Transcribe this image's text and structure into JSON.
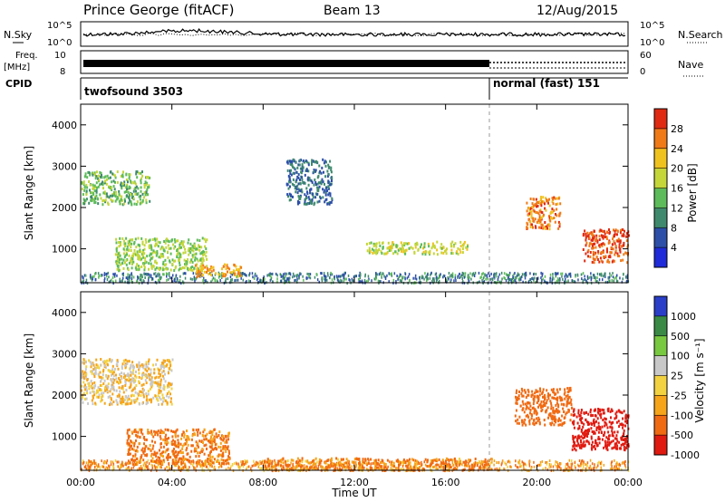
{
  "header": {
    "title": "Prince George (fitACF)",
    "beam": "Beam 13",
    "date": "12/Aug/2015"
  },
  "noise_panel": {
    "left_label": "N.Sky",
    "right_label": "N.Search",
    "left_ticks": [
      "10^5",
      "10^0"
    ],
    "right_ticks": [
      "10^5",
      "10^0"
    ]
  },
  "freq_panel": {
    "left_label_1": "Freq.",
    "left_label_2": "[MHz]",
    "left_ticks": [
      "10",
      "8"
    ],
    "right_label": "Nave",
    "right_ticks": [
      "60",
      "0"
    ]
  },
  "cpid_panel": {
    "label": "CPID",
    "segments": [
      {
        "name": "twofsound 3503",
        "start_hour": 0,
        "end_hour": 18
      },
      {
        "name": "normal (fast) 151",
        "start_hour": 18,
        "end_hour": 24
      }
    ]
  },
  "colors": {
    "power_scale": [
      "#1f2bd8",
      "#2d4fa8",
      "#3f8a6e",
      "#5dbb5a",
      "#c4d63a",
      "#f0c21e",
      "#f07a18",
      "#e02a12"
    ],
    "velocity_scale": [
      "#e01a10",
      "#f06a12",
      "#f6a41a",
      "#f2d240",
      "#c8c8c8",
      "#78c840",
      "#3a8a46",
      "#2a3ec8"
    ]
  },
  "chart_data": [
    {
      "type": "heatmap",
      "name": "power",
      "xlabel": "Time UT",
      "ylabel": "Slant Range [km]",
      "xlim": [
        0,
        24
      ],
      "ylim": [
        180,
        4500
      ],
      "x_ticks": [
        "00:00",
        "04:00",
        "08:00",
        "12:00",
        "16:00",
        "20:00",
        "00:00"
      ],
      "y_ticks": [
        1000,
        2000,
        3000,
        4000
      ],
      "colorbar": {
        "label": "Power [dB]",
        "ticks": [
          4,
          8,
          12,
          16,
          20,
          24,
          28
        ]
      },
      "features": [
        {
          "t0": 0.0,
          "t1": 3.0,
          "r0": 2100,
          "r1": 2900,
          "value": 14
        },
        {
          "t0": 1.5,
          "t1": 5.5,
          "r0": 500,
          "r1": 1300,
          "value": 16
        },
        {
          "t0": 5.0,
          "t1": 7.0,
          "r0": 350,
          "r1": 650,
          "value": 24
        },
        {
          "t0": 9.0,
          "t1": 11.0,
          "r0": 2100,
          "r1": 3200,
          "value": 8
        },
        {
          "t0": 12.5,
          "t1": 17.0,
          "r0": 900,
          "r1": 1200,
          "value": 18
        },
        {
          "t0": 19.5,
          "t1": 21.0,
          "r0": 1500,
          "r1": 2300,
          "value": 26
        },
        {
          "t0": 22.0,
          "t1": 24.0,
          "r0": 700,
          "r1": 1500,
          "value": 28
        }
      ]
    },
    {
      "type": "heatmap",
      "name": "velocity",
      "xlabel": "Time UT",
      "ylabel": "Slant Range [km]",
      "xlim": [
        0,
        24
      ],
      "ylim": [
        180,
        4500
      ],
      "x_ticks": [
        "00:00",
        "04:00",
        "08:00",
        "12:00",
        "16:00",
        "20:00",
        "00:00"
      ],
      "y_ticks": [
        1000,
        2000,
        3000,
        4000
      ],
      "colorbar": {
        "label": "Velocity [m s⁻¹]",
        "ticks": [
          1000,
          500,
          100,
          25,
          -25,
          -100,
          -500,
          -1000
        ]
      },
      "features": [
        {
          "t0": 0.0,
          "t1": 4.0,
          "r0": 1800,
          "r1": 2900,
          "value": 0
        },
        {
          "t0": 2.0,
          "t1": 6.5,
          "r0": 350,
          "r1": 1200,
          "value": -150
        },
        {
          "t0": 8.0,
          "t1": 18.0,
          "r0": 200,
          "r1": 500,
          "value": -120
        },
        {
          "t0": 19.0,
          "t1": 21.5,
          "r0": 1300,
          "r1": 2200,
          "value": -400
        },
        {
          "t0": 21.5,
          "t1": 24.0,
          "r0": 700,
          "r1": 1700,
          "value": -700
        }
      ]
    }
  ],
  "footer": {
    "xlabel": "Time UT"
  }
}
